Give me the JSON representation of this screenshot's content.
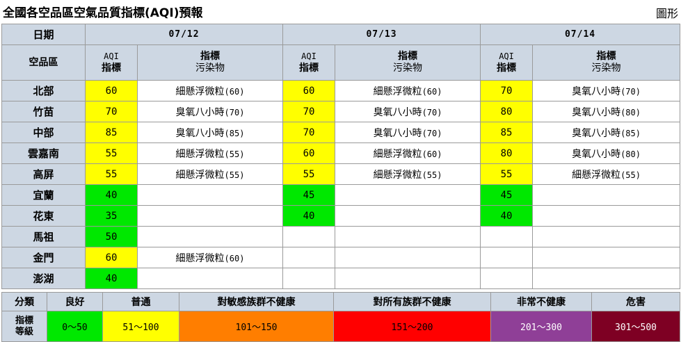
{
  "page": {
    "title": "全國各空品區空氣品質指標(AQI)預報",
    "chart_link": "圖形"
  },
  "table": {
    "date_label": "日期",
    "region_label": "空品區",
    "dates": [
      "07/12",
      "07/13",
      "07/14"
    ],
    "aqi_header_l1": "AQI",
    "aqi_header_l2": "指標",
    "pollutant_header_l1": "指標",
    "pollutant_header_l2": "污染物",
    "rows": [
      {
        "region": "北部",
        "days": [
          {
            "aqi": "60",
            "level": "moderate",
            "pollutant": "細懸浮微粒",
            "pval": "(60)"
          },
          {
            "aqi": "60",
            "level": "moderate",
            "pollutant": "細懸浮微粒",
            "pval": "(60)"
          },
          {
            "aqi": "70",
            "level": "moderate",
            "pollutant": "臭氧八小時",
            "pval": "(70)"
          }
        ]
      },
      {
        "region": "竹苗",
        "days": [
          {
            "aqi": "70",
            "level": "moderate",
            "pollutant": "臭氧八小時",
            "pval": "(70)"
          },
          {
            "aqi": "70",
            "level": "moderate",
            "pollutant": "臭氧八小時",
            "pval": "(70)"
          },
          {
            "aqi": "80",
            "level": "moderate",
            "pollutant": "臭氧八小時",
            "pval": "(80)"
          }
        ]
      },
      {
        "region": "中部",
        "days": [
          {
            "aqi": "85",
            "level": "moderate",
            "pollutant": "臭氧八小時",
            "pval": "(85)"
          },
          {
            "aqi": "70",
            "level": "moderate",
            "pollutant": "臭氧八小時",
            "pval": "(70)"
          },
          {
            "aqi": "85",
            "level": "moderate",
            "pollutant": "臭氧八小時",
            "pval": "(85)"
          }
        ]
      },
      {
        "region": "雲嘉南",
        "days": [
          {
            "aqi": "55",
            "level": "moderate",
            "pollutant": "細懸浮微粒",
            "pval": "(55)"
          },
          {
            "aqi": "60",
            "level": "moderate",
            "pollutant": "細懸浮微粒",
            "pval": "(60)"
          },
          {
            "aqi": "80",
            "level": "moderate",
            "pollutant": "臭氧八小時",
            "pval": "(80)"
          }
        ]
      },
      {
        "region": "高屏",
        "days": [
          {
            "aqi": "55",
            "level": "moderate",
            "pollutant": "細懸浮微粒",
            "pval": "(55)"
          },
          {
            "aqi": "55",
            "level": "moderate",
            "pollutant": "細懸浮微粒",
            "pval": "(55)"
          },
          {
            "aqi": "55",
            "level": "moderate",
            "pollutant": "細懸浮微粒",
            "pval": "(55)"
          }
        ]
      },
      {
        "region": "宜蘭",
        "days": [
          {
            "aqi": "40",
            "level": "good",
            "pollutant": "",
            "pval": ""
          },
          {
            "aqi": "45",
            "level": "good",
            "pollutant": "",
            "pval": ""
          },
          {
            "aqi": "45",
            "level": "good",
            "pollutant": "",
            "pval": ""
          }
        ]
      },
      {
        "region": "花東",
        "days": [
          {
            "aqi": "35",
            "level": "good",
            "pollutant": "",
            "pval": ""
          },
          {
            "aqi": "40",
            "level": "good",
            "pollutant": "",
            "pval": ""
          },
          {
            "aqi": "40",
            "level": "good",
            "pollutant": "",
            "pval": ""
          }
        ]
      },
      {
        "region": "馬祖",
        "days": [
          {
            "aqi": "50",
            "level": "good",
            "pollutant": "",
            "pval": ""
          },
          {
            "aqi": "",
            "level": "none",
            "pollutant": "",
            "pval": ""
          },
          {
            "aqi": "",
            "level": "none",
            "pollutant": "",
            "pval": ""
          }
        ]
      },
      {
        "region": "金門",
        "days": [
          {
            "aqi": "60",
            "level": "moderate",
            "pollutant": "細懸浮微粒",
            "pval": "(60)"
          },
          {
            "aqi": "",
            "level": "none",
            "pollutant": "",
            "pval": ""
          },
          {
            "aqi": "",
            "level": "none",
            "pollutant": "",
            "pval": ""
          }
        ]
      },
      {
        "region": "澎湖",
        "days": [
          {
            "aqi": "40",
            "level": "good",
            "pollutant": "",
            "pval": ""
          },
          {
            "aqi": "",
            "level": "none",
            "pollutant": "",
            "pval": ""
          },
          {
            "aqi": "",
            "level": "none",
            "pollutant": "",
            "pval": ""
          }
        ]
      }
    ]
  },
  "legend": {
    "category_label": "分類",
    "indicator_label_l1": "指標",
    "indicator_label_l2": "等級",
    "levels": [
      {
        "name": "良好",
        "range": "0～50",
        "bg": "#00e800",
        "fg": "#000000"
      },
      {
        "name": "普通",
        "range": "51～100",
        "bg": "#ffff00",
        "fg": "#000000"
      },
      {
        "name": "對敏感族群不健康",
        "range": "101～150",
        "bg": "#ff7e00",
        "fg": "#000000"
      },
      {
        "name": "對所有族群不健康",
        "range": "151～200",
        "bg": "#ff0000",
        "fg": "#000000"
      },
      {
        "name": "非常不健康",
        "range": "201～300",
        "bg": "#8f3f97",
        "fg": "#ffffff"
      },
      {
        "name": "危害",
        "range": "301～500",
        "bg": "#7e0023",
        "fg": "#ffffff"
      }
    ]
  },
  "colors": {
    "good": "#00e800",
    "moderate": "#ffff00",
    "none": "#ffffff",
    "header_bg": "#cdd7e3"
  }
}
